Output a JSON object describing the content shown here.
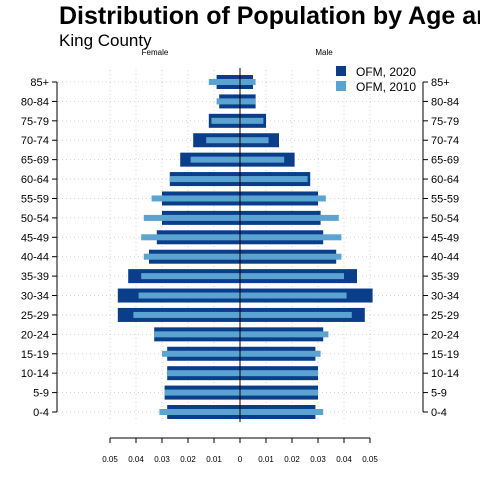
{
  "title": "Distribution of Population by Age and Sex",
  "subtitle": "King County",
  "chart_data": {
    "type": "bar",
    "orientation": "horizontal",
    "layout": "population-pyramid",
    "categories": [
      "0-4",
      "5-9",
      "10-14",
      "15-19",
      "20-24",
      "25-29",
      "30-34",
      "35-39",
      "40-44",
      "45-49",
      "50-54",
      "55-59",
      "60-64",
      "65-69",
      "70-74",
      "75-79",
      "80-84",
      "85+"
    ],
    "side_labels": {
      "left": "Female",
      "right": "Male"
    },
    "series": [
      {
        "name": "OFM, 2020",
        "color": "#0a3d8a",
        "female": [
          0.028,
          0.029,
          0.028,
          0.028,
          0.033,
          0.047,
          0.047,
          0.043,
          0.035,
          0.032,
          0.03,
          0.03,
          0.027,
          0.023,
          0.018,
          0.012,
          0.008,
          0.009
        ],
        "male": [
          0.029,
          0.03,
          0.03,
          0.029,
          0.032,
          0.048,
          0.051,
          0.045,
          0.037,
          0.032,
          0.031,
          0.03,
          0.027,
          0.021,
          0.015,
          0.01,
          0.006,
          0.005
        ]
      },
      {
        "name": "OFM, 2010",
        "color": "#5ba3d0",
        "female": [
          0.031,
          0.029,
          0.028,
          0.03,
          0.033,
          0.041,
          0.039,
          0.038,
          0.037,
          0.038,
          0.037,
          0.034,
          0.027,
          0.019,
          0.013,
          0.011,
          0.009,
          0.012
        ],
        "male": [
          0.032,
          0.03,
          0.03,
          0.031,
          0.034,
          0.043,
          0.041,
          0.04,
          0.039,
          0.039,
          0.038,
          0.033,
          0.026,
          0.017,
          0.011,
          0.009,
          0.006,
          0.006
        ]
      }
    ],
    "x_ticks": [
      "0.05",
      "0.04",
      "0.03",
      "0.02",
      "0.01",
      "0",
      "0.01",
      "0.02",
      "0.03",
      "0.04",
      "0.05"
    ],
    "x_tick_values": [
      -0.05,
      -0.04,
      -0.03,
      -0.02,
      -0.01,
      0,
      0.01,
      0.02,
      0.03,
      0.04,
      0.05
    ],
    "xlim": [
      -0.05,
      0.05
    ],
    "grid": true,
    "legend_position": "top-right"
  }
}
